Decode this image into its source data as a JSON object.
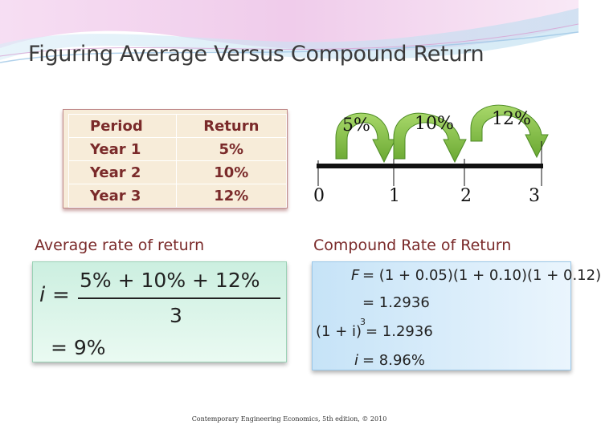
{
  "title": "Figuring Average Versus Compound Return",
  "table": {
    "headers": [
      "Period",
      "Return"
    ],
    "rows": [
      {
        "period": "Year 1",
        "return": "5%"
      },
      {
        "period": "Year 2",
        "return": "10%"
      },
      {
        "period": "Year 3",
        "return": "12%"
      }
    ]
  },
  "timeline": {
    "rates": [
      "5%",
      "10%",
      "12%"
    ],
    "periods": [
      "0",
      "1",
      "2",
      "3"
    ]
  },
  "average": {
    "label": "Average rate of return",
    "var": "i",
    "eq": "=",
    "numerator": "5% + 10% + 12%",
    "denominator": "3",
    "result": "= 9%"
  },
  "compound": {
    "label": "Compound Rate of Return",
    "line1_var": "F",
    "line1_expr": "= (1 + 0.05)(1 + 0.10)(1 + 0.12)",
    "line2": "= 1.2936",
    "line3_lhs": "(1 + i)",
    "line3_exp": "3",
    "line3_rhs": "= 1.2936",
    "line4_var": "i",
    "line4_rhs": "= 8.96%"
  },
  "footer": "Contemporary Engineering Economics, 5th edition, © 2010",
  "colors": {
    "arrow_green": "#86c24a",
    "label_red": "#7a2a2a",
    "table_bg": "#f7ecd9"
  }
}
